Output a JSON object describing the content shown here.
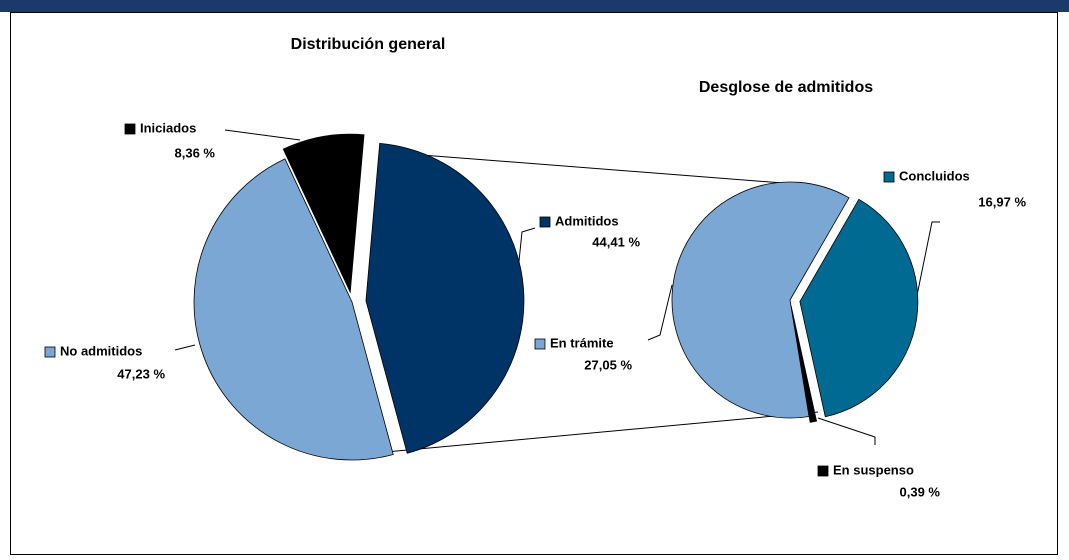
{
  "chart_data": [
    {
      "type": "pie",
      "title": "Distribución general",
      "categories": [
        "Admitidos",
        "No admitidos",
        "Iniciados"
      ],
      "values": [
        44.41,
        47.23,
        8.36
      ],
      "value_labels": [
        "44,41 %",
        "47,23 %",
        "8,36 %"
      ],
      "colors": [
        "#003366",
        "#7ba7d4",
        "#000000"
      ]
    },
    {
      "type": "pie",
      "title": "Desglose de admitidos",
      "categories": [
        "Concluidos",
        "En suspenso",
        "En trámite"
      ],
      "values": [
        16.97,
        0.39,
        27.05
      ],
      "value_labels": [
        "16,97 %",
        "0,39 %",
        "27,05 %"
      ],
      "colors": [
        "#006a93",
        "#000000",
        "#7ba7d4"
      ]
    }
  ]
}
